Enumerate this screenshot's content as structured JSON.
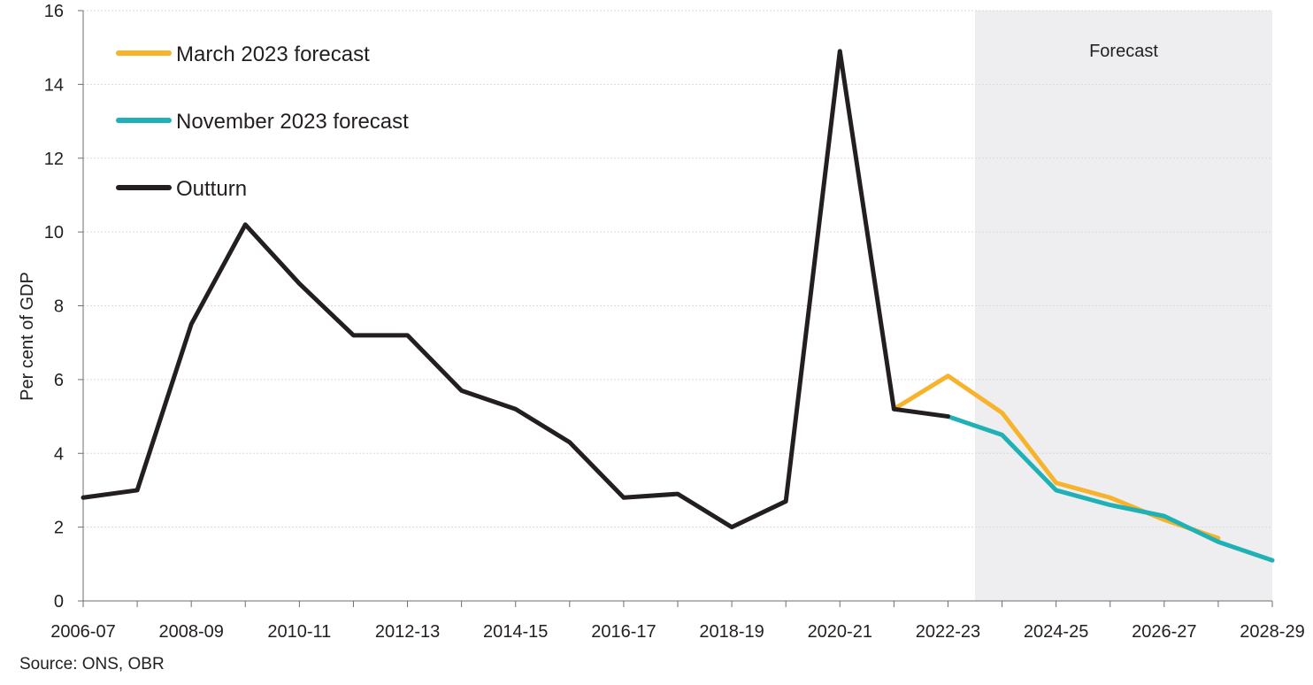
{
  "chart_data": {
    "type": "line",
    "ylabel": "Per cent of GDP",
    "ylim": [
      0,
      16
    ],
    "y_ticks": [
      "0",
      "2",
      "4",
      "6",
      "8",
      "10",
      "12",
      "14",
      "16"
    ],
    "grid": "horizontal",
    "legend_placement": "top-left",
    "categories": [
      "2006-07",
      "2007-08",
      "2008-09",
      "2009-10",
      "2010-11",
      "2011-12",
      "2012-13",
      "2013-14",
      "2014-15",
      "2015-16",
      "2016-17",
      "2017-18",
      "2018-19",
      "2019-20",
      "2020-21",
      "2021-22",
      "2022-23",
      "2023-24",
      "2024-25",
      "2025-26",
      "2026-27",
      "2027-28",
      "2028-29"
    ],
    "x_tick_labels": [
      "2006-07",
      "2008-09",
      "2010-11",
      "2012-13",
      "2014-15",
      "2016-17",
      "2018-19",
      "2020-21",
      "2022-23",
      "2024-25",
      "2026-27",
      "2028-29"
    ],
    "forecast_region": {
      "label": "Forecast",
      "from_category": "2022-23",
      "to_category": "2028-29"
    },
    "series": [
      {
        "name": "March 2023 forecast",
        "color": "#f7b32b",
        "values": [
          null,
          null,
          null,
          null,
          null,
          null,
          null,
          null,
          null,
          null,
          null,
          null,
          null,
          null,
          null,
          5.2,
          6.1,
          5.1,
          3.2,
          2.8,
          2.2,
          1.7,
          null
        ]
      },
      {
        "name": "November 2023 forecast",
        "color": "#1fb1b5",
        "values": [
          null,
          null,
          null,
          null,
          null,
          null,
          null,
          null,
          null,
          null,
          null,
          null,
          null,
          null,
          null,
          null,
          5.0,
          4.5,
          3.0,
          2.6,
          2.3,
          1.6,
          1.1
        ]
      },
      {
        "name": "Outturn",
        "color": "#231f20",
        "values": [
          2.8,
          3.0,
          7.5,
          10.2,
          8.6,
          7.2,
          7.2,
          5.7,
          5.2,
          4.3,
          2.8,
          2.9,
          2.0,
          2.7,
          14.9,
          5.2,
          5.0,
          null,
          null,
          null,
          null,
          null,
          null
        ]
      }
    ],
    "source": "Source:  ONS, OBR"
  }
}
